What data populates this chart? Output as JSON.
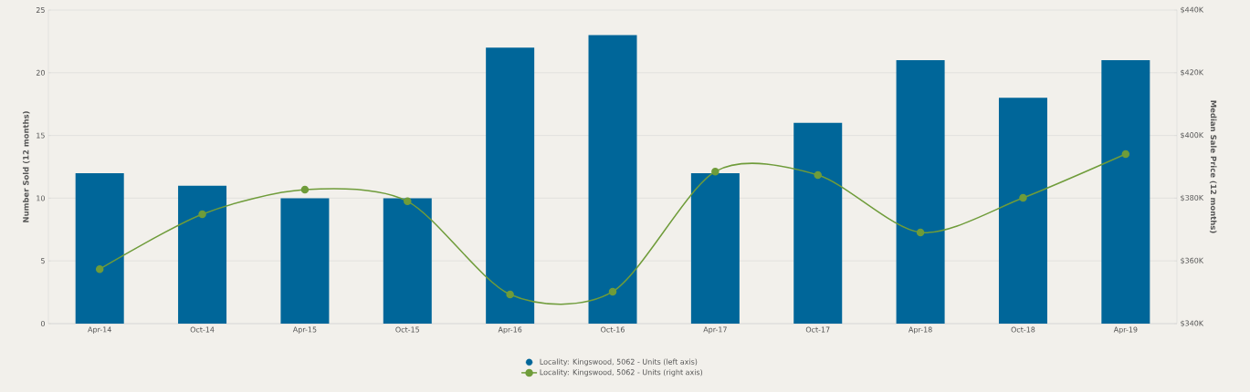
{
  "chart_data": {
    "type": "bar",
    "ylabel": "Number Sold (12 months)",
    "y2label": "Median Sale Price (12 months)",
    "categories": [
      "Apr-14",
      "Oct-14",
      "Apr-15",
      "Oct-15",
      "Apr-16",
      "Oct-16",
      "Apr-17",
      "Oct-17",
      "Apr-18",
      "Oct-18",
      "Apr-19"
    ],
    "series": [
      {
        "name": "Locality: Kingswood, 5062 - Units (left axis)",
        "color": "#006699",
        "values": [
          12,
          11,
          10,
          10,
          22,
          23,
          12,
          16,
          21,
          18,
          21
        ]
      },
      {
        "name": "Locality: Kingswood, 5062 - Units (right axis)",
        "type": "line",
        "axis": "y2",
        "color": "#6f9c3a",
        "marker": "circle",
        "values": [
          357.4,
          374.9,
          382.7,
          379.0,
          349.3,
          350.2,
          388.5,
          387.4,
          369.1,
          380.1,
          394.1
        ]
      }
    ],
    "ylim": [
      0,
      25
    ],
    "yticks": [
      0,
      5,
      10,
      15,
      20,
      25
    ],
    "y2lim": [
      340,
      440
    ],
    "y2ticks": [
      {
        "value": 340,
        "label": "$340K"
      },
      {
        "value": 360,
        "label": "$360K"
      },
      {
        "value": 380,
        "label": "$380K"
      },
      {
        "value": 400,
        "label": "$400K"
      },
      {
        "value": 420,
        "label": "$420K"
      },
      {
        "value": 440,
        "label": "$440K"
      }
    ],
    "grid": "y",
    "legend": "bottom"
  }
}
